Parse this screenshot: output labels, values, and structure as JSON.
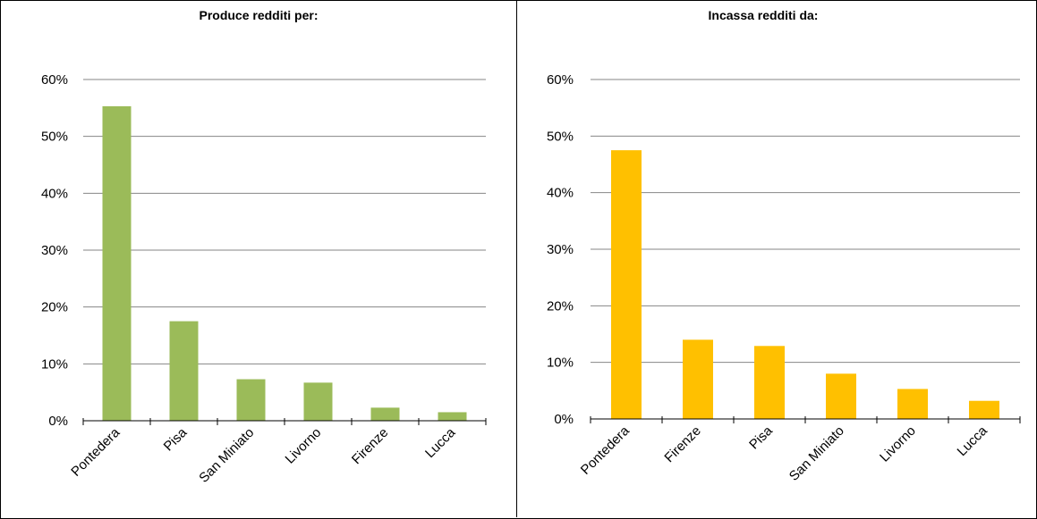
{
  "chart_data": [
    {
      "type": "bar",
      "title": "Produce redditi per:",
      "categories": [
        "Pontedera",
        "Pisa",
        "San Miniato",
        "Livorno",
        "Firenze",
        "Lucca"
      ],
      "values": [
        55.3,
        17.5,
        7.3,
        6.7,
        2.3,
        1.5
      ],
      "ylim": [
        0,
        60
      ],
      "yticks": [
        "0%",
        "10%",
        "20%",
        "30%",
        "40%",
        "50%",
        "60%"
      ],
      "grid": true,
      "color": "#9BBB59"
    },
    {
      "type": "bar",
      "title": "Incassa redditi da:",
      "categories": [
        "Pontedera",
        "Firenze",
        "Pisa",
        "San Miniato",
        "Livorno",
        "Lucca"
      ],
      "values": [
        47.5,
        14.0,
        12.9,
        8.0,
        5.3,
        3.2
      ],
      "ylim": [
        0,
        60
      ],
      "yticks": [
        "0%",
        "10%",
        "20%",
        "30%",
        "40%",
        "50%",
        "60%"
      ],
      "grid": true,
      "color": "#FFC000"
    }
  ]
}
